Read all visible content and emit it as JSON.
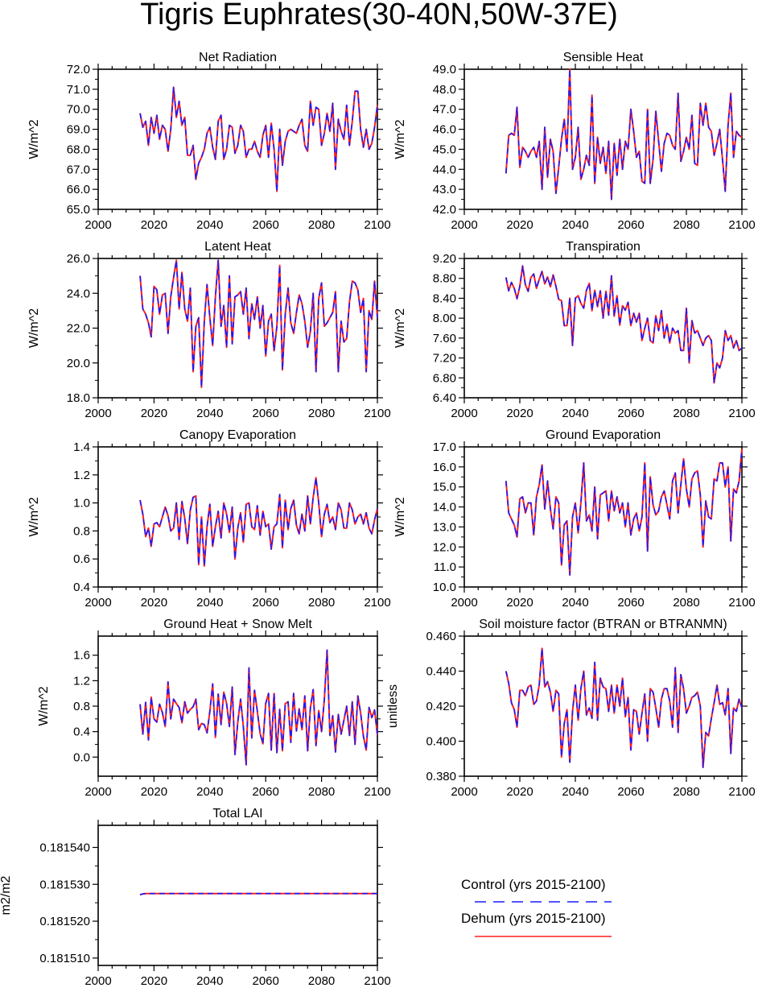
{
  "title": "Tigris Euphrates(30-40N,50W-37E)",
  "colors": {
    "control": "#1a1aff",
    "dehum": "#ff2020",
    "axis": "#000000"
  },
  "legend": {
    "control_label": "Control (yrs 2015-2100)",
    "dehum_label": "Dehum (yrs 2015-2100)"
  },
  "chart_data": [
    {
      "type": "line",
      "title": "Net Radiation",
      "ylabel": "W/m^2",
      "xlim": [
        2000,
        2100
      ],
      "ylim": [
        65,
        72
      ],
      "xticks": [
        2000,
        2020,
        2040,
        2060,
        2080,
        2100
      ],
      "yticks": [
        "65.0",
        "66.0",
        "67.0",
        "68.0",
        "69.0",
        "70.0",
        "71.0",
        "72.0"
      ],
      "x_start": 2015,
      "series": [
        {
          "values": [
            69.8,
            69.1,
            69.4,
            68.2,
            69.6,
            68.8,
            69.7,
            68.5,
            69.2,
            69.0,
            67.9,
            69.0,
            71.1,
            69.6,
            70.4,
            69.2,
            69.6,
            67.7,
            67.7,
            68.2,
            66.5,
            67.3,
            67.6,
            68.0,
            68.8,
            69.1,
            68.1,
            67.5,
            69.4,
            69.7,
            67.5,
            68.0,
            69.2,
            69.1,
            67.8,
            68.2,
            69.2,
            68.9,
            67.6,
            68.0,
            68.0,
            68.4,
            67.9,
            67.6,
            68.7,
            69.2,
            67.6,
            69.3,
            68.0,
            65.9,
            69.0,
            67.2,
            68.4,
            68.9,
            69.0,
            68.9,
            68.8,
            69.2,
            69.5,
            68.2,
            67.9,
            70.4,
            69.2,
            70.1,
            70.0,
            68.2,
            68.8,
            69.8,
            68.9,
            70.3,
            67.0,
            69.5,
            68.9,
            68.5,
            70.2,
            68.2,
            69.4,
            70.9,
            70.9,
            69.0,
            68.1,
            69.0,
            68.0,
            68.3,
            69.1,
            70.2
          ]
        }
      ]
    },
    {
      "type": "line",
      "title": "Sensible Heat",
      "ylabel": "W/m^2",
      "xlim": [
        2000,
        2100
      ],
      "ylim": [
        42,
        49
      ],
      "xticks": [
        2000,
        2020,
        2040,
        2060,
        2080,
        2100
      ],
      "yticks": [
        "42.0",
        "43.0",
        "44.0",
        "45.0",
        "46.0",
        "47.0",
        "48.0",
        "49.0"
      ],
      "x_start": 2015,
      "series": [
        {
          "values": [
            43.8,
            45.7,
            45.8,
            45.7,
            47.1,
            44.1,
            45.1,
            44.9,
            44.6,
            44.9,
            45.1,
            44.6,
            45.4,
            43.0,
            46.1,
            43.6,
            45.5,
            44.9,
            42.8,
            44.1,
            45.5,
            46.5,
            44.9,
            49.0,
            44.0,
            44.6,
            46.1,
            43.5,
            44.0,
            44.7,
            44.2,
            47.7,
            43.3,
            45.6,
            44.3,
            45.1,
            43.8,
            45.4,
            42.5,
            45.3,
            43.7,
            45.5,
            44.0,
            45.4,
            45.0,
            47.0,
            45.9,
            44.6,
            44.9,
            43.4,
            43.3,
            47.0,
            43.3,
            44.5,
            46.9,
            45.4,
            43.9,
            45.3,
            45.8,
            45.7,
            45.2,
            45.0,
            47.8,
            44.4,
            44.9,
            45.6,
            45.0,
            46.7,
            44.3,
            44.2,
            47.3,
            46.2,
            47.3,
            46.1,
            45.9,
            44.7,
            45.3,
            46.0,
            44.5,
            42.9,
            46.2,
            47.8,
            44.6,
            45.9,
            45.7,
            45.6
          ]
        }
      ]
    },
    {
      "type": "line",
      "title": "Latent Heat",
      "ylabel": "W/m^2",
      "xlim": [
        2000,
        2100
      ],
      "ylim": [
        18,
        26
      ],
      "xticks": [
        2000,
        2020,
        2040,
        2060,
        2080,
        2100
      ],
      "yticks": [
        "18.0",
        "20.0",
        "22.0",
        "24.0",
        "26.0"
      ],
      "x_start": 2015,
      "series": [
        {
          "values": [
            25.0,
            23.1,
            22.8,
            22.3,
            21.5,
            24.4,
            24.2,
            22.8,
            23.9,
            24.0,
            21.7,
            23.8,
            24.9,
            25.9,
            23.1,
            25.2,
            23.1,
            22.4,
            24.3,
            19.5,
            22.1,
            22.6,
            18.6,
            22.4,
            24.5,
            22.6,
            21.0,
            23.8,
            25.9,
            22.1,
            23.3,
            20.9,
            25.0,
            21.1,
            23.8,
            23.9,
            24.1,
            22.8,
            24.3,
            21.4,
            23.4,
            22.5,
            23.8,
            22.0,
            23.3,
            20.4,
            22.4,
            22.8,
            20.7,
            22.1,
            25.6,
            19.6,
            22.8,
            24.3,
            22.3,
            21.7,
            22.9,
            23.9,
            23.4,
            22.4,
            20.9,
            21.8,
            24.0,
            19.5,
            23.7,
            24.6,
            22.1,
            22.3,
            22.6,
            22.9,
            24.1,
            19.5,
            22.4,
            21.2,
            21.4,
            23.5,
            24.7,
            24.6,
            24.2,
            22.9,
            23.7,
            19.5,
            23.0,
            22.5,
            24.7,
            22.6
          ]
        }
      ]
    },
    {
      "type": "line",
      "title": "Transpiration",
      "ylabel": "W/m^2",
      "xlim": [
        2000,
        2100
      ],
      "ylim": [
        6.4,
        9.2
      ],
      "xticks": [
        2000,
        2020,
        2040,
        2060,
        2080,
        2100
      ],
      "yticks": [
        "6.40",
        "6.80",
        "7.20",
        "7.60",
        "8.00",
        "8.40",
        "8.80",
        "9.20"
      ],
      "x_start": 2015,
      "series": [
        {
          "values": [
            8.82,
            8.55,
            8.72,
            8.6,
            8.39,
            8.64,
            9.05,
            8.67,
            8.54,
            8.82,
            8.89,
            8.6,
            8.78,
            8.94,
            8.69,
            8.83,
            8.63,
            8.87,
            8.64,
            8.38,
            8.35,
            7.85,
            7.85,
            8.4,
            7.45,
            8.4,
            8.45,
            8.3,
            8.2,
            8.56,
            8.7,
            8.15,
            8.56,
            8.23,
            8.55,
            8.0,
            8.54,
            8.06,
            8.85,
            8.04,
            8.45,
            7.86,
            8.25,
            8.16,
            8.32,
            7.85,
            8.1,
            7.92,
            8.1,
            7.55,
            7.8,
            8.0,
            7.55,
            7.5,
            8.05,
            7.75,
            8.15,
            7.6,
            7.88,
            7.5,
            7.8,
            7.7,
            7.75,
            7.35,
            7.35,
            8.2,
            7.1,
            7.95,
            7.7,
            7.75,
            7.6,
            7.45,
            7.6,
            7.65,
            7.55,
            6.7,
            7.1,
            7.0,
            7.2,
            7.75,
            7.55,
            7.65,
            7.4,
            7.55,
            7.35,
            7.4
          ]
        }
      ]
    },
    {
      "type": "line",
      "title": "Canopy Evaporation",
      "ylabel": "W/m^2",
      "xlim": [
        2000,
        2100
      ],
      "ylim": [
        0.4,
        1.4
      ],
      "xticks": [
        2000,
        2020,
        2040,
        2060,
        2080,
        2100
      ],
      "yticks": [
        "0.4",
        "0.6",
        "0.8",
        "1.0",
        "1.2",
        "1.4"
      ],
      "x_start": 2015,
      "series": [
        {
          "values": [
            1.02,
            0.92,
            0.76,
            0.82,
            0.69,
            0.85,
            0.86,
            0.83,
            0.9,
            0.97,
            0.91,
            0.8,
            0.82,
            1.0,
            0.74,
            1.01,
            0.89,
            0.71,
            0.95,
            1.04,
            1.05,
            0.56,
            0.9,
            0.55,
            0.83,
            0.99,
            0.69,
            0.83,
            0.94,
            0.75,
            1.0,
            0.92,
            0.79,
            0.97,
            0.6,
            0.82,
            0.93,
            0.72,
            0.99,
            1.0,
            0.83,
            0.81,
            0.98,
            0.77,
            0.94,
            0.83,
            0.85,
            0.67,
            0.83,
            0.85,
            1.06,
            0.68,
            1.02,
            0.81,
            0.96,
            1.02,
            0.84,
            0.78,
            0.92,
            0.8,
            1.05,
            0.85,
            1.04,
            1.18,
            1.0,
            0.76,
            0.92,
            0.99,
            0.86,
            0.9,
            0.81,
            1.0,
            0.95,
            0.82,
            0.82,
            1.0,
            0.95,
            0.85,
            0.9,
            0.92,
            0.85,
            0.93,
            0.82,
            0.78,
            0.88,
            0.96
          ]
        }
      ]
    },
    {
      "type": "line",
      "title": "Ground Evaporation",
      "ylabel": "W/m^2",
      "xlim": [
        2000,
        2100
      ],
      "ylim": [
        10,
        17
      ],
      "xticks": [
        2000,
        2020,
        2040,
        2060,
        2080,
        2100
      ],
      "yticks": [
        "10.0",
        "11.0",
        "12.0",
        "13.0",
        "14.0",
        "15.0",
        "16.0",
        "17.0"
      ],
      "x_start": 2015,
      "series": [
        {
          "values": [
            15.3,
            13.7,
            13.4,
            13.1,
            12.5,
            14.4,
            14.5,
            13.7,
            14.2,
            14.2,
            12.6,
            14.5,
            15.1,
            16.1,
            13.9,
            15.3,
            13.9,
            12.9,
            14.5,
            14.2,
            11.1,
            13.1,
            13.3,
            10.6,
            13.5,
            14.2,
            12.7,
            14.2,
            16.2,
            13.3,
            13.6,
            12.8,
            15.0,
            12.4,
            14.6,
            14.7,
            14.8,
            13.3,
            14.8,
            13.8,
            14.5,
            13.7,
            14.2,
            13.0,
            14.2,
            12.6,
            13.4,
            13.7,
            12.8,
            13.5,
            16.2,
            11.8,
            15.5,
            14.1,
            13.6,
            13.8,
            14.5,
            14.8,
            14.1,
            13.4,
            15.3,
            15.7,
            13.7,
            15.1,
            16.4,
            14.9,
            14.0,
            15.4,
            15.7,
            15.8,
            14.6,
            12.0,
            14.3,
            13.5,
            13.4,
            15.4,
            15.3,
            16.2,
            16.2,
            15.0,
            16.0,
            12.3,
            14.9,
            14.7,
            15.3,
            16.9
          ]
        }
      ]
    },
    {
      "type": "line",
      "title": "Ground Heat + Snow Melt",
      "ylabel": "W/m^2",
      "xlim": [
        2000,
        2100
      ],
      "ylim": [
        -0.3,
        1.9
      ],
      "xticks": [
        2000,
        2020,
        2040,
        2060,
        2080,
        2100
      ],
      "yticks": [
        "0.0",
        "0.4",
        "0.8",
        "1.2",
        "1.6"
      ],
      "x_start": 2015,
      "series": [
        {
          "values": [
            0.83,
            0.36,
            0.86,
            0.27,
            0.94,
            0.6,
            0.55,
            0.83,
            0.7,
            0.48,
            1.18,
            0.6,
            0.91,
            0.84,
            0.78,
            0.54,
            0.87,
            0.69,
            0.75,
            0.79,
            0.91,
            0.43,
            0.53,
            0.51,
            0.38,
            0.72,
            1.15,
            0.31,
            0.99,
            0.51,
            1.02,
            0.84,
            0.48,
            1.1,
            0.04,
            0.55,
            0.91,
            0.48,
            -0.12,
            1.4,
            0.3,
            1.05,
            0.72,
            0.37,
            0.21,
            0.84,
            1.0,
            0.11,
            1.0,
            0.07,
            0.75,
            0.1,
            0.84,
            0.87,
            0.23,
            1.0,
            0.41,
            0.76,
            0.43,
            0.96,
            0.1,
            0.77,
            1.06,
            0.18,
            0.73,
            0.4,
            0.91,
            1.68,
            0.34,
            0.65,
            0.08,
            0.67,
            0.36,
            0.58,
            0.8,
            0.34,
            0.87,
            0.2,
            0.96,
            0.69,
            0.33,
            0.11,
            0.78,
            0.62,
            0.74,
            0.35
          ]
        }
      ]
    },
    {
      "type": "line",
      "title": "Soil moisture factor (BTRAN or BTRANMN)",
      "ylabel": "unitless",
      "xlim": [
        2000,
        2100
      ],
      "ylim": [
        0.38,
        0.46
      ],
      "xticks": [
        2000,
        2020,
        2040,
        2060,
        2080,
        2100
      ],
      "yticks": [
        "0.380",
        "0.400",
        "0.420",
        "0.440",
        "0.460"
      ],
      "x_start": 2015,
      "series": [
        {
          "values": [
            0.44,
            0.433,
            0.422,
            0.418,
            0.408,
            0.429,
            0.429,
            0.426,
            0.431,
            0.432,
            0.421,
            0.423,
            0.432,
            0.453,
            0.431,
            0.434,
            0.428,
            0.417,
            0.429,
            0.427,
            0.391,
            0.41,
            0.418,
            0.388,
            0.417,
            0.432,
            0.412,
            0.43,
            0.44,
            0.415,
            0.419,
            0.413,
            0.445,
            0.412,
            0.436,
            0.431,
            0.43,
            0.417,
            0.432,
            0.416,
            0.432,
            0.42,
            0.436,
            0.414,
            0.425,
            0.395,
            0.418,
            0.417,
            0.404,
            0.416,
            0.427,
            0.4,
            0.43,
            0.428,
            0.419,
            0.408,
            0.424,
            0.43,
            0.43,
            0.423,
            0.408,
            0.442,
            0.405,
            0.438,
            0.43,
            0.416,
            0.42,
            0.425,
            0.426,
            0.428,
            0.42,
            0.385,
            0.405,
            0.403,
            0.413,
            0.422,
            0.432,
            0.421,
            0.422,
            0.415,
            0.43,
            0.393,
            0.419,
            0.417,
            0.424,
            0.419
          ]
        }
      ]
    },
    {
      "type": "line",
      "title": "Total LAI",
      "ylabel": "m2/m2",
      "xlim": [
        2000,
        2100
      ],
      "ylim": [
        0.181508,
        0.181546
      ],
      "xticks": [
        2000,
        2020,
        2040,
        2060,
        2080,
        2100
      ],
      "yticks": [
        "0.181510",
        "0.181520",
        "0.181530",
        "0.181540"
      ],
      "ytick_values": [
        0.18151,
        0.18152,
        0.18153,
        0.18154
      ],
      "x_start": 2015,
      "series": [
        {
          "values": [
            0.1815272,
            0.1815274,
            0.1815275,
            0.1815275,
            0.1815275,
            0.1815275,
            0.1815275,
            0.1815275,
            0.1815275,
            0.1815275,
            0.1815275,
            0.1815275,
            0.1815275,
            0.1815275,
            0.1815275,
            0.1815275,
            0.1815275,
            0.1815275,
            0.1815275,
            0.1815275,
            0.1815275,
            0.1815275,
            0.1815275,
            0.1815275,
            0.1815275,
            0.1815275,
            0.1815275,
            0.1815275,
            0.1815275,
            0.1815275,
            0.1815275,
            0.1815275,
            0.1815275,
            0.1815275,
            0.1815275,
            0.1815275,
            0.1815275,
            0.1815275,
            0.1815275,
            0.1815275,
            0.1815275,
            0.1815275,
            0.1815275,
            0.1815275,
            0.1815275,
            0.1815275,
            0.1815275,
            0.1815275,
            0.1815275,
            0.1815275,
            0.1815275,
            0.1815275,
            0.1815275,
            0.1815275,
            0.1815275,
            0.1815275,
            0.1815275,
            0.1815275,
            0.1815275,
            0.1815275,
            0.1815275,
            0.1815275,
            0.1815275,
            0.1815275,
            0.1815275,
            0.1815275,
            0.1815275,
            0.1815275,
            0.1815275,
            0.1815275,
            0.1815275,
            0.1815275,
            0.1815275,
            0.1815275,
            0.1815275,
            0.1815275,
            0.1815275,
            0.1815275,
            0.1815275,
            0.1815275,
            0.1815275,
            0.1815275,
            0.1815275,
            0.1815275,
            0.1815275,
            0.1815275
          ]
        }
      ]
    }
  ]
}
